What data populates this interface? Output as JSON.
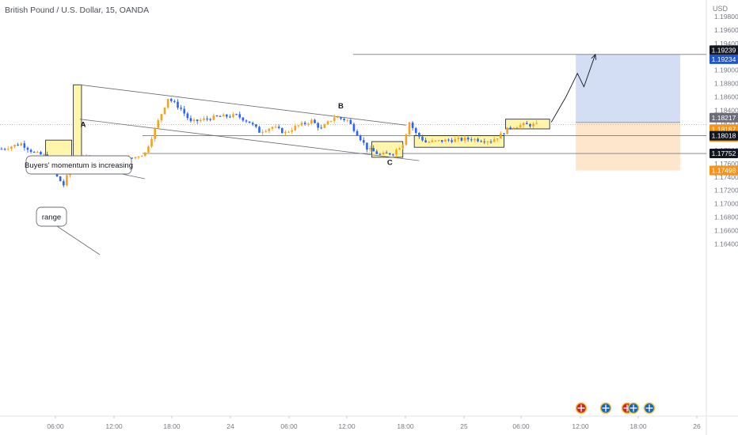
{
  "header": {
    "symbol_title": "British Pound / U.S. Dollar, 15, OANDA",
    "currency": "USD"
  },
  "colors": {
    "up": "#f7a21b",
    "down": "#2962ff",
    "zone_fill": "#fff59d",
    "zone_border": "#131722",
    "profit_fill": "#d3def5",
    "loss_fill": "#fde6cc",
    "tag_dark": "#131722",
    "tag_blue": "#2155c9",
    "tag_orange": "#f7931a",
    "tag_gray": "#6a6d78"
  },
  "chart_data": {
    "type": "candlestick",
    "ylim": [
      1.1625,
      1.1985
    ],
    "y_ticks": [
      "1.19800",
      "1.19600",
      "1.19400",
      "1.19200",
      "1.19000",
      "1.18800",
      "1.18600",
      "1.18400",
      "1.18200",
      "1.18000",
      "1.17800",
      "1.17600",
      "1.17400",
      "1.17200",
      "1.17000",
      "1.16800",
      "1.16600",
      "1.16400"
    ],
    "x_ticks": [
      "06:00",
      "12:00",
      "18:00",
      "24",
      "06:00",
      "12:00",
      "18:00",
      "25",
      "06:00",
      "12:00",
      "18:00",
      "26"
    ],
    "price_tags": [
      {
        "value": 1.19239,
        "label": "1.19239",
        "style": "dark"
      },
      {
        "value": 1.19234,
        "label": "1.19234",
        "style": "blue"
      },
      {
        "value": 1.18217,
        "label": "1.18217",
        "style": "gray"
      },
      {
        "value": 1.18187,
        "label": "1.18187",
        "style": "orange",
        "sub": "00:41"
      },
      {
        "value": 1.18018,
        "label": "1.18018",
        "style": "dark"
      },
      {
        "value": 1.17752,
        "label": "1.17752",
        "style": "dark"
      },
      {
        "value": 1.17498,
        "label": "1.17498",
        "style": "orange"
      }
    ],
    "horizontal_levels": [
      1.19234,
      1.18018,
      1.17752
    ],
    "current_price": 1.18187,
    "anchors": [
      {
        "i": 0,
        "p": 1.1782
      },
      {
        "i": 6,
        "p": 1.179
      },
      {
        "i": 10,
        "p": 1.1776
      },
      {
        "i": 14,
        "p": 1.1771
      },
      {
        "i": 17,
        "p": 1.174
      },
      {
        "i": 19,
        "p": 1.1728
      },
      {
        "i": 21,
        "p": 1.1752
      },
      {
        "i": 26,
        "p": 1.177
      },
      {
        "i": 33,
        "p": 1.176
      },
      {
        "i": 40,
        "p": 1.1768
      },
      {
        "i": 44,
        "p": 1.1776
      },
      {
        "i": 47,
        "p": 1.1812
      },
      {
        "i": 51,
        "p": 1.1858
      },
      {
        "i": 55,
        "p": 1.1842
      },
      {
        "i": 58,
        "p": 1.1822
      },
      {
        "i": 61,
        "p": 1.1825
      },
      {
        "i": 66,
        "p": 1.183
      },
      {
        "i": 72,
        "p": 1.1832
      },
      {
        "i": 76,
        "p": 1.1822
      },
      {
        "i": 79,
        "p": 1.1808
      },
      {
        "i": 83,
        "p": 1.1815
      },
      {
        "i": 87,
        "p": 1.1806
      },
      {
        "i": 90,
        "p": 1.1815
      },
      {
        "i": 95,
        "p": 1.1824
      },
      {
        "i": 98,
        "p": 1.1812
      },
      {
        "i": 102,
        "p": 1.183
      },
      {
        "i": 106,
        "p": 1.1825
      },
      {
        "i": 109,
        "p": 1.1805
      },
      {
        "i": 112,
        "p": 1.1783
      },
      {
        "i": 116,
        "p": 1.1773
      },
      {
        "i": 120,
        "p": 1.1776
      },
      {
        "i": 123,
        "p": 1.179
      },
      {
        "i": 125,
        "p": 1.1822
      },
      {
        "i": 127,
        "p": 1.1805
      },
      {
        "i": 130,
        "p": 1.1792
      },
      {
        "i": 137,
        "p": 1.1795
      },
      {
        "i": 144,
        "p": 1.1797
      },
      {
        "i": 150,
        "p": 1.1794
      },
      {
        "i": 153,
        "p": 1.1803
      },
      {
        "i": 156,
        "p": 1.1815
      },
      {
        "i": 160,
        "p": 1.1818
      },
      {
        "i": 164,
        "p": 1.1818
      }
    ],
    "boxes": [
      {
        "i1": 13.5,
        "i2": 21.5,
        "top": 1.17952,
        "bottom": 1.1767
      },
      {
        "i1": 22,
        "i2": 24.5,
        "top": 1.1878,
        "bottom": 1.17705
      },
      {
        "i1": 113.5,
        "i2": 123,
        "top": 1.1793,
        "bottom": 1.17695
      },
      {
        "i1": 126.5,
        "i2": 154,
        "top": 1.18018,
        "bottom": 1.17845
      },
      {
        "i1": 154.5,
        "i2": 168,
        "top": 1.18265,
        "bottom": 1.1812
      }
    ],
    "channel": {
      "upper": {
        "i1": 24,
        "p1": 1.1878,
        "i2": 124,
        "p2": 1.18175
      },
      "lower": {
        "i1": 24,
        "p1": 1.18265,
        "i2": 128,
        "p2": 1.17645
      }
    },
    "position": {
      "i1": 176,
      "i2": 208,
      "entry": 1.18217,
      "target": 1.19234,
      "stop": 1.17498
    },
    "projection": [
      {
        "i": 168.5,
        "p": 1.1822
      },
      {
        "i": 173,
        "p": 1.186
      },
      {
        "i": 176.5,
        "p": 1.1895
      },
      {
        "i": 178.5,
        "p": 1.1875
      },
      {
        "i": 182,
        "p": 1.19234
      }
    ],
    "labels": [
      {
        "text": "A",
        "i": 25,
        "p": 1.1815
      },
      {
        "text": "B",
        "i": 104,
        "p": 1.1843
      },
      {
        "text": "C",
        "i": 119,
        "p": 1.1758
      }
    ],
    "callouts": [
      {
        "text": "Buyers' momentum is increasing",
        "bx1": 33,
        "bx2": 166,
        "by1": 197,
        "by2": 220,
        "tx": 183,
        "ty": 226
      },
      {
        "text": "range",
        "bx1": 46,
        "bx2": 84,
        "by1": 262,
        "by2": 286,
        "tx": 126,
        "ty": 322
      }
    ]
  }
}
